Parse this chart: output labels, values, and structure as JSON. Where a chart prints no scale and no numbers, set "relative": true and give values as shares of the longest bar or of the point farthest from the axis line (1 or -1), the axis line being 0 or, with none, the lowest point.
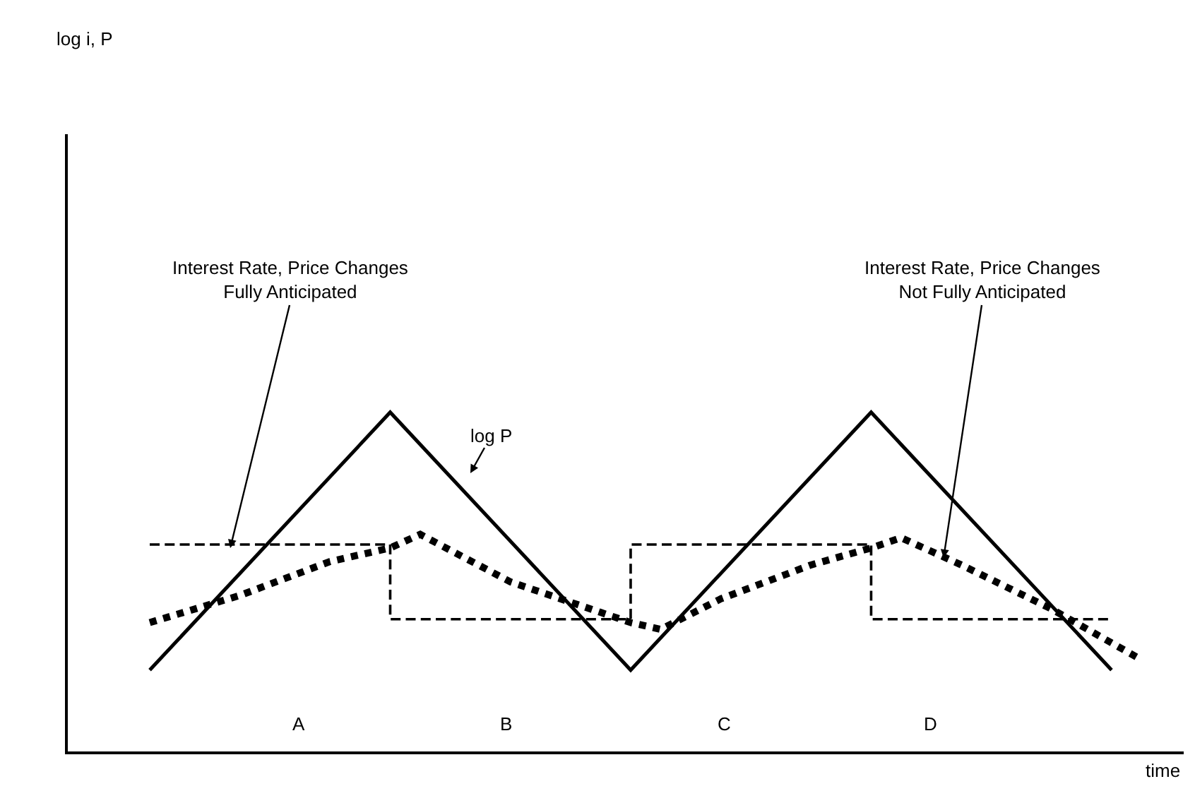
{
  "chart_data": {
    "type": "line",
    "relative": true,
    "xlabel": "time",
    "categories": [
      null,
      null,
      null,
      null,
      null,
      null,
      null,
      null,
      null,
      null,
      null,
      null,
      null,
      null,
      null,
      null,
      null,
      null,
      null,
      null,
      null,
      null,
      null,
      null,
      null,
      null,
      null,
      null,
      null,
      null,
      null,
      null,
      null,
      null
    ],
    "series": [
      {
        "color": "#000000",
        "values": [
          0.24,
          null,
          null,
          null,
          null,
          null,
          null,
          null,
          1,
          null,
          null,
          null,
          null,
          null,
          null,
          null,
          0.24,
          null,
          null,
          null,
          null,
          null,
          null,
          null,
          1,
          null,
          null,
          null,
          null,
          null,
          null,
          null,
          0.24,
          null
        ]
      },
      {
        "type": "step",
        "color": "#000000",
        "line_style": "dashed",
        "values": [
          0.61,
          null,
          null,
          null,
          null,
          null,
          null,
          null,
          0.39,
          null,
          null,
          null,
          null,
          null,
          null,
          null,
          0.61,
          null,
          null,
          null,
          null,
          null,
          null,
          null,
          0.39,
          null,
          null,
          null,
          null,
          null,
          null,
          null,
          0.39,
          null
        ]
      },
      {
        "color": "#000000",
        "line_style": "dotted",
        "values": [
          0.38,
          null,
          null,
          0.46,
          null,
          null,
          0.56,
          null,
          0.6,
          0.64,
          null,
          null,
          0.5,
          null,
          null,
          0.41,
          0.38,
          0.36,
          null,
          0.45,
          null,
          null,
          0.55,
          null,
          0.6,
          0.63,
          null,
          0.55,
          null,
          null,
          0.42,
          null,
          null,
          0.27
        ]
      }
    ],
    "annotations": [
      "log i, P",
      "Interest Rate, Price Changes\nFully Anticipated",
      "Interest Rate, Price Changes\nNot Fully Anticipated",
      "log P",
      "A",
      "B",
      "C",
      "D"
    ],
    "line_style": "solid"
  }
}
